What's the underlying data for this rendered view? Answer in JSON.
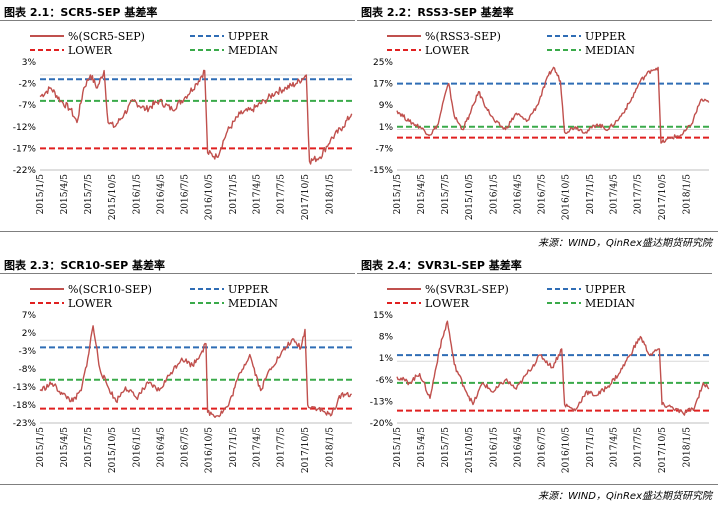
{
  "source_note": "来源：WIND，QinRex盛达期货研究院",
  "legend": {
    "upper": "UPPER",
    "lower": "LOWER",
    "median": "MEDIAN"
  },
  "colors": {
    "series": "#c0504d",
    "upper": "#2f6db5",
    "lower": "#e02020",
    "median": "#3aaa4a"
  },
  "chart_data": [
    {
      "type": "line",
      "title": "图表 2.1：SCR5-SEP 基差率",
      "series_label": "%(SCR5-SEP)",
      "x_ticks": [
        "2015/1/5",
        "2015/4/5",
        "2015/7/5",
        "2015/10/5",
        "2016/1/5",
        "2016/4/5",
        "2016/7/5",
        "2016/10/5",
        "2017/1/5",
        "2017/4/5",
        "2017/7/5",
        "2017/10/5",
        "2018/1/5"
      ],
      "y_ticks": [
        "3%",
        "-2%",
        "-7%",
        "-12%",
        "-17%",
        "-22%"
      ],
      "ylim": [
        -22,
        3
      ],
      "upper": -1,
      "median": -6,
      "lower": -17,
      "series": [
        {
          "x": "2015/01/05",
          "y": -5
        },
        {
          "x": "2015/02/15",
          "y": -3
        },
        {
          "x": "2015/03/25",
          "y": -6
        },
        {
          "x": "2015/05/01",
          "y": -8
        },
        {
          "x": "2015/05/25",
          "y": -11
        },
        {
          "x": "2015/06/20",
          "y": -3
        },
        {
          "x": "2015/07/15",
          "y": 0
        },
        {
          "x": "2015/08/10",
          "y": -3
        },
        {
          "x": "2015/09/05",
          "y": 1
        },
        {
          "x": "2015/09/20",
          "y": -11
        },
        {
          "x": "2015/10/15",
          "y": -12
        },
        {
          "x": "2015/11/20",
          "y": -9
        },
        {
          "x": "2015/12/25",
          "y": -6
        },
        {
          "x": "2016/02/10",
          "y": -8
        },
        {
          "x": "2016/04/01",
          "y": -6
        },
        {
          "x": "2016/05/20",
          "y": -8
        },
        {
          "x": "2016/07/10",
          "y": -5
        },
        {
          "x": "2016/08/20",
          "y": -2
        },
        {
          "x": "2016/09/20",
          "y": 1
        },
        {
          "x": "2016/10/01",
          "y": -18
        },
        {
          "x": "2016/11/05",
          "y": -19
        },
        {
          "x": "2016/12/15",
          "y": -13
        },
        {
          "x": "2017/02/01",
          "y": -9
        },
        {
          "x": "2017/03/20",
          "y": -8
        },
        {
          "x": "2017/05/05",
          "y": -6
        },
        {
          "x": "2017/06/15",
          "y": -4
        },
        {
          "x": "2017/07/25",
          "y": -3
        },
        {
          "x": "2017/09/01",
          "y": -2
        },
        {
          "x": "2017/10/10",
          "y": 0
        },
        {
          "x": "2017/10/22",
          "y": -20
        },
        {
          "x": "2017/12/01",
          "y": -19
        },
        {
          "x": "2018/01/10",
          "y": -15
        },
        {
          "x": "2018/02/25",
          "y": -12
        },
        {
          "x": "2018/03/31",
          "y": -9
        }
      ]
    },
    {
      "type": "line",
      "title": "图表 2.2：RSS3-SEP 基差率",
      "series_label": "%(RSS3-SEP)",
      "x_ticks": [
        "2015/1/5",
        "2015/4/5",
        "2015/7/5",
        "2015/10/5",
        "2016/1/5",
        "2016/4/5",
        "2016/7/5",
        "2016/10/5",
        "2017/1/5",
        "2017/4/5",
        "2017/7/5",
        "2017/10/5",
        "2018/1/5"
      ],
      "y_ticks": [
        "25%",
        "17%",
        "9%",
        "1%",
        "-7%",
        "-15%"
      ],
      "ylim": [
        -15,
        25
      ],
      "upper": 17,
      "median": 1,
      "lower": -3,
      "series": [
        {
          "x": "2015/01/05",
          "y": 7
        },
        {
          "x": "2015/02/20",
          "y": 3
        },
        {
          "x": "2015/04/01",
          "y": 1
        },
        {
          "x": "2015/05/10",
          "y": -2
        },
        {
          "x": "2015/06/10",
          "y": 2
        },
        {
          "x": "2015/07/01",
          "y": 11
        },
        {
          "x": "2015/07/20",
          "y": 17
        },
        {
          "x": "2015/08/10",
          "y": 5
        },
        {
          "x": "2015/09/10",
          "y": 0
        },
        {
          "x": "2015/10/10",
          "y": 6
        },
        {
          "x": "2015/11/10",
          "y": 14
        },
        {
          "x": "2015/12/10",
          "y": 8
        },
        {
          "x": "2016/01/10",
          "y": 3
        },
        {
          "x": "2016/02/20",
          "y": 0
        },
        {
          "x": "2016/04/01",
          "y": 6
        },
        {
          "x": "2016/05/10",
          "y": 3
        },
        {
          "x": "2016/06/20",
          "y": 9
        },
        {
          "x": "2016/08/01",
          "y": 20
        },
        {
          "x": "2016/08/20",
          "y": 23
        },
        {
          "x": "2016/09/15",
          "y": 18
        },
        {
          "x": "2016/10/01",
          "y": -1
        },
        {
          "x": "2016/11/10",
          "y": 1
        },
        {
          "x": "2016/12/20",
          "y": -1
        },
        {
          "x": "2017/02/01",
          "y": 2
        },
        {
          "x": "2017/03/15",
          "y": 0
        },
        {
          "x": "2017/04/25",
          "y": 4
        },
        {
          "x": "2017/06/05",
          "y": 10
        },
        {
          "x": "2017/07/15",
          "y": 18
        },
        {
          "x": "2017/08/25",
          "y": 22
        },
        {
          "x": "2017/09/20",
          "y": 23
        },
        {
          "x": "2017/10/01",
          "y": -5
        },
        {
          "x": "2017/11/10",
          "y": -3
        },
        {
          "x": "2017/12/20",
          "y": -2
        },
        {
          "x": "2018/01/25",
          "y": 2
        },
        {
          "x": "2018/03/01",
          "y": 11
        },
        {
          "x": "2018/03/31",
          "y": 10
        }
      ]
    },
    {
      "type": "line",
      "title": "图表 2.3：SCR10-SEP 基差率",
      "series_label": "%(SCR10-SEP)",
      "x_ticks": [
        "2015/1/5",
        "2015/4/5",
        "2015/7/5",
        "2015/10/5",
        "2016/1/5",
        "2016/4/5",
        "2016/7/5",
        "2016/10/5",
        "2017/1/5",
        "2017/4/5",
        "2017/7/5",
        "2017/10/5",
        "2018/1/5"
      ],
      "y_ticks": [
        "7%",
        "2%",
        "-3%",
        "-8%",
        "-13%",
        "-18%",
        "-23%"
      ],
      "ylim": [
        -23,
        7
      ],
      "upper": -2,
      "median": -11,
      "lower": -19,
      "series": [
        {
          "x": "2015/01/05",
          "y": -14
        },
        {
          "x": "2015/02/20",
          "y": -12
        },
        {
          "x": "2015/04/01",
          "y": -15
        },
        {
          "x": "2015/05/10",
          "y": -17
        },
        {
          "x": "2015/06/10",
          "y": -14
        },
        {
          "x": "2015/07/05",
          "y": -5
        },
        {
          "x": "2015/07/25",
          "y": 4
        },
        {
          "x": "2015/08/20",
          "y": -8
        },
        {
          "x": "2015/09/20",
          "y": -13
        },
        {
          "x": "2015/10/20",
          "y": -17
        },
        {
          "x": "2015/11/25",
          "y": -13
        },
        {
          "x": "2016/01/05",
          "y": -16
        },
        {
          "x": "2016/02/20",
          "y": -12
        },
        {
          "x": "2016/04/01",
          "y": -14
        },
        {
          "x": "2016/05/15",
          "y": -9
        },
        {
          "x": "2016/06/25",
          "y": -5
        },
        {
          "x": "2016/08/05",
          "y": -7
        },
        {
          "x": "2016/09/10",
          "y": -3
        },
        {
          "x": "2016/09/25",
          "y": -1
        },
        {
          "x": "2016/10/01",
          "y": -20
        },
        {
          "x": "2016/11/10",
          "y": -21
        },
        {
          "x": "2016/12/20",
          "y": -18
        },
        {
          "x": "2017/02/01",
          "y": -9
        },
        {
          "x": "2017/03/10",
          "y": -4
        },
        {
          "x": "2017/04/20",
          "y": -14
        },
        {
          "x": "2017/05/25",
          "y": -8
        },
        {
          "x": "2017/07/05",
          "y": -4
        },
        {
          "x": "2017/08/15",
          "y": 0
        },
        {
          "x": "2017/09/20",
          "y": -2
        },
        {
          "x": "2017/10/05",
          "y": 3
        },
        {
          "x": "2017/10/15",
          "y": -18
        },
        {
          "x": "2017/11/25",
          "y": -19
        },
        {
          "x": "2018/01/10",
          "y": -21
        },
        {
          "x": "2018/02/20",
          "y": -15
        },
        {
          "x": "2018/03/31",
          "y": -15
        }
      ]
    },
    {
      "type": "line",
      "title": "图表 2.4：SVR3L-SEP 基差率",
      "series_label": "%(SVR3L-SEP)",
      "x_ticks": [
        "2015/1/5",
        "2015/4/5",
        "2015/7/5",
        "2015/10/5",
        "2016/1/5",
        "2016/4/5",
        "2016/7/5",
        "2016/10/5",
        "2017/1/5",
        "2017/4/5",
        "2017/7/5",
        "2017/10/5",
        "2018/1/5"
      ],
      "y_ticks": [
        "15%",
        "8%",
        "1%",
        "-6%",
        "-13%",
        "-20%"
      ],
      "ylim": [
        -20,
        15
      ],
      "upper": 2,
      "median": -7,
      "lower": -16,
      "series": [
        {
          "x": "2015/01/05",
          "y": -5
        },
        {
          "x": "2015/02/20",
          "y": -7
        },
        {
          "x": "2015/04/01",
          "y": -4
        },
        {
          "x": "2015/05/10",
          "y": -12
        },
        {
          "x": "2015/06/15",
          "y": 4
        },
        {
          "x": "2015/07/15",
          "y": 13
        },
        {
          "x": "2015/08/10",
          "y": -1
        },
        {
          "x": "2015/09/15",
          "y": -8
        },
        {
          "x": "2015/10/20",
          "y": -14
        },
        {
          "x": "2015/11/25",
          "y": -7
        },
        {
          "x": "2016/01/05",
          "y": -10
        },
        {
          "x": "2016/02/20",
          "y": -6
        },
        {
          "x": "2016/04/01",
          "y": -9
        },
        {
          "x": "2016/05/20",
          "y": -3
        },
        {
          "x": "2016/07/01",
          "y": 2
        },
        {
          "x": "2016/08/15",
          "y": -2
        },
        {
          "x": "2016/09/20",
          "y": 4
        },
        {
          "x": "2016/10/01",
          "y": -14
        },
        {
          "x": "2016/11/10",
          "y": -16
        },
        {
          "x": "2016/12/20",
          "y": -10
        },
        {
          "x": "2017/02/01",
          "y": -11
        },
        {
          "x": "2017/03/15",
          "y": -8
        },
        {
          "x": "2017/04/25",
          "y": -4
        },
        {
          "x": "2017/06/05",
          "y": 2
        },
        {
          "x": "2017/07/15",
          "y": 8
        },
        {
          "x": "2017/08/20",
          "y": 2
        },
        {
          "x": "2017/09/25",
          "y": 4
        },
        {
          "x": "2017/10/05",
          "y": -14
        },
        {
          "x": "2017/11/15",
          "y": -15
        },
        {
          "x": "2017/12/25",
          "y": -17
        },
        {
          "x": "2018/02/05",
          "y": -15
        },
        {
          "x": "2018/03/10",
          "y": -7
        },
        {
          "x": "2018/03/31",
          "y": -9
        }
      ]
    }
  ]
}
